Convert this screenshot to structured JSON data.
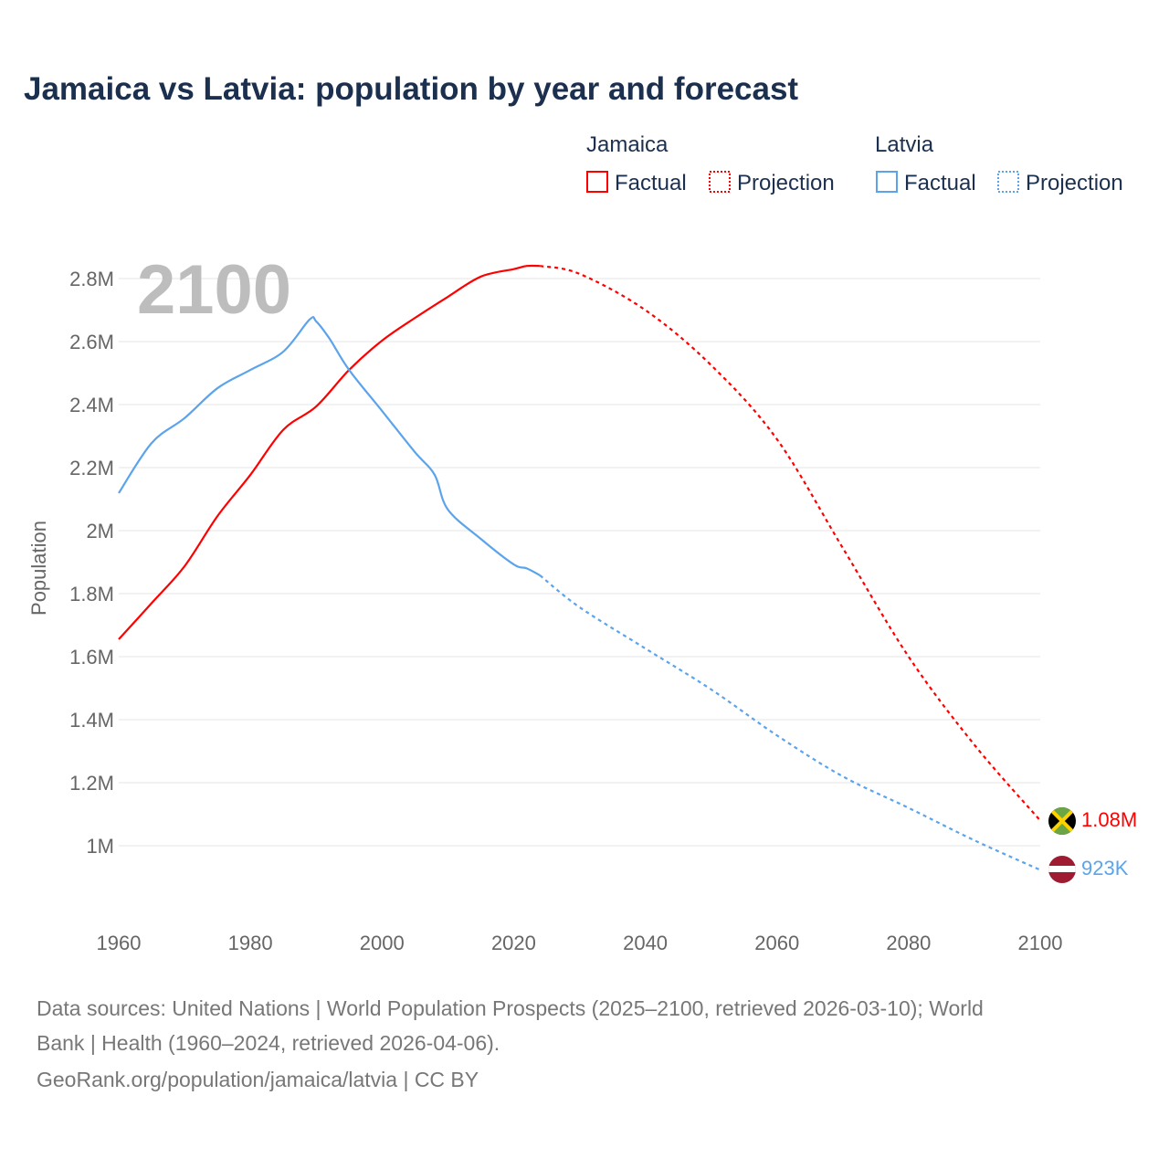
{
  "chart_data": {
    "type": "line",
    "title": "Jamaica vs Latvia: population by year and forecast",
    "xlabel": "",
    "ylabel": "Population",
    "xlim": [
      1960,
      2100
    ],
    "ylim": [
      0.8,
      2.9
    ],
    "x_ticks": [
      "1960",
      "1980",
      "2000",
      "2020",
      "2040",
      "2060",
      "2080",
      "2100"
    ],
    "x_tick_values": [
      1960,
      1980,
      2000,
      2020,
      2040,
      2060,
      2080,
      2100
    ],
    "y_ticks": [
      "1M",
      "1.2M",
      "1.4M",
      "1.6M",
      "1.8M",
      "2M",
      "2.2M",
      "2.4M",
      "2.6M",
      "2.8M"
    ],
    "y_tick_values": [
      1,
      1.2,
      1.4,
      1.6,
      1.8,
      2,
      2.2,
      2.4,
      2.6,
      2.8
    ],
    "grid": true,
    "year_watermark": "2100",
    "legend": {
      "placement": "top-right",
      "groups": [
        {
          "name": "Jamaica",
          "factual_label": "Factual",
          "projection_label": "Projection",
          "color": "#ff0000"
        },
        {
          "name": "Latvia",
          "factual_label": "Factual",
          "projection_label": "Projection",
          "color": "#5ba4ec"
        }
      ]
    },
    "series": [
      {
        "name": "Jamaica",
        "color": "#ff0000",
        "end_label": "1.08M",
        "flag": "jamaica-flag",
        "factual": {
          "x": [
            1960,
            1965,
            1970,
            1975,
            1980,
            1985,
            1990,
            1995,
            2000,
            2005,
            2010,
            2015,
            2020,
            2022,
            2024
          ],
          "y": [
            1.655,
            1.77,
            1.887,
            2.046,
            2.177,
            2.32,
            2.394,
            2.51,
            2.603,
            2.675,
            2.742,
            2.806,
            2.83,
            2.84,
            2.84
          ]
        },
        "projection": {
          "x": [
            2024,
            2030,
            2040,
            2050,
            2060,
            2070,
            2080,
            2090,
            2100
          ],
          "y": [
            2.84,
            2.815,
            2.7,
            2.525,
            2.29,
            1.945,
            1.6,
            1.32,
            1.08
          ]
        }
      },
      {
        "name": "Latvia",
        "color": "#5ba4ec",
        "end_label": "923K",
        "flag": "latvia-flag",
        "factual": {
          "x": [
            1960,
            1965,
            1970,
            1975,
            1980,
            1985,
            1989,
            1990,
            1992,
            1995,
            2000,
            2005,
            2008,
            2010,
            2015,
            2020,
            2022,
            2024
          ],
          "y": [
            2.119,
            2.278,
            2.357,
            2.452,
            2.51,
            2.568,
            2.67,
            2.664,
            2.61,
            2.51,
            2.38,
            2.249,
            2.177,
            2.067,
            1.974,
            1.893,
            1.88,
            1.858
          ]
        },
        "projection": {
          "x": [
            2024,
            2030,
            2040,
            2050,
            2060,
            2070,
            2080,
            2090,
            2100
          ],
          "y": [
            1.858,
            1.757,
            1.626,
            1.496,
            1.35,
            1.22,
            1.12,
            1.017,
            0.923
          ]
        }
      }
    ]
  },
  "footer": {
    "line1": "Data sources: United Nations | World Population Prospects (2025–2100, retrieved 2026-03-10); World",
    "line2": "Bank | Health (1960–2024, retrieved 2026-04-06).",
    "line3": "GeoRank.org/population/jamaica/latvia | CC BY"
  }
}
